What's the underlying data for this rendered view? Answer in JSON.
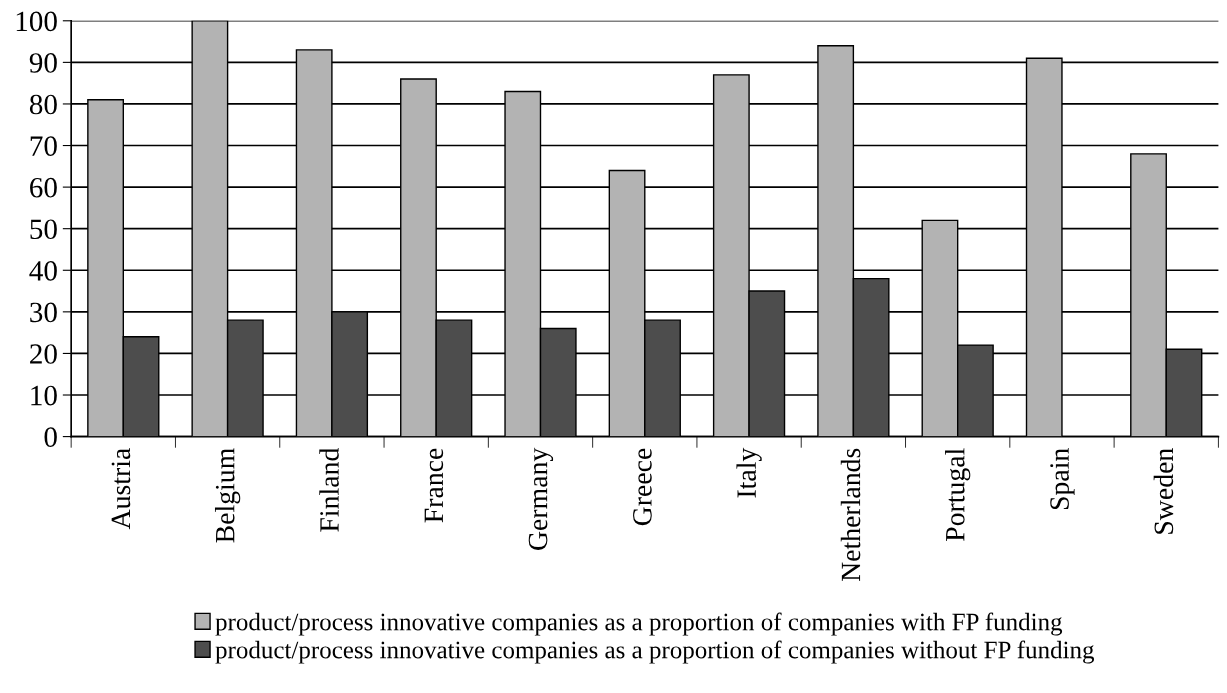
{
  "chart_data": {
    "type": "bar",
    "categories": [
      "Austria",
      "Belgium",
      "Finland",
      "France",
      "Germany",
      "Greece",
      "Italy",
      "Netherlands",
      "Portugal",
      "Spain",
      "Sweden"
    ],
    "series": [
      {
        "name": "product/process innovative companies as a proportion of companies with FP funding",
        "color": "#b3b3b3",
        "values": [
          81,
          100,
          93,
          86,
          83,
          64,
          87,
          94,
          52,
          91,
          68
        ]
      },
      {
        "name": "product/process innovative companies as a proportion of companies without FP funding",
        "color": "#4d4d4d",
        "values": [
          24,
          28,
          30,
          28,
          26,
          28,
          35,
          38,
          22,
          null,
          21
        ]
      }
    ],
    "ylim": [
      0,
      100
    ],
    "yticks": [
      0,
      10,
      20,
      30,
      40,
      50,
      60,
      70,
      80,
      90,
      100
    ],
    "grid": "y",
    "legend": "bottom"
  }
}
